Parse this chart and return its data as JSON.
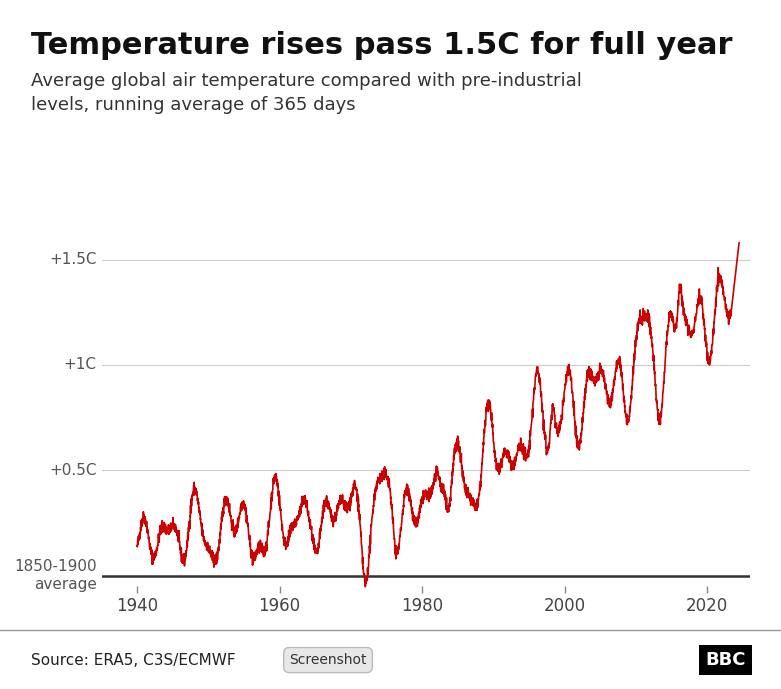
{
  "title": "Temperature rises pass 1.5C for full year",
  "subtitle": "Average global air temperature compared with pre-industrial\nlevels, running average of 365 days",
  "source": "Source: ERA5, C3S/ECMWF",
  "line_color": "#cc0000",
  "background_color": "#ffffff",
  "yticks": [
    0.0,
    0.5,
    1.0,
    1.5
  ],
  "ytick_labels": [
    "1850-1900\naverage",
    "+0.5C",
    "+1C",
    "+1.5C"
  ],
  "xticks": [
    1940,
    1960,
    1980,
    2000,
    2020
  ],
  "xmin": 1935,
  "xmax": 2026,
  "ymin": -0.08,
  "ymax": 1.62,
  "title_fontsize": 22,
  "subtitle_fontsize": 13,
  "source_fontsize": 11
}
